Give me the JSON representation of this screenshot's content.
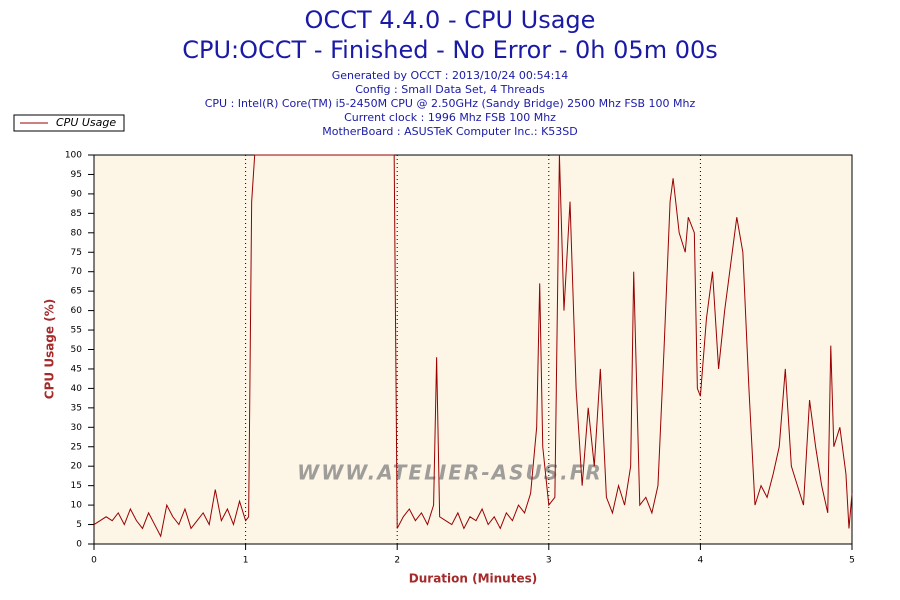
{
  "chart_data": {
    "type": "line",
    "title": "OCCT 4.4.0 - CPU Usage",
    "subtitle": "CPU:OCCT - Finished - No Error - 0h 05m 00s",
    "info_lines": [
      "Generated by OCCT : 2013/10/24 00:54:14",
      "Config : Small Data Set, 4 Threads",
      "CPU : Intel(R) Core(TM) i5-2450M CPU @ 2.50GHz (Sandy Bridge) 2500 Mhz FSB 100 Mhz",
      "Current clock : 1996 Mhz FSB 100 Mhz",
      "MotherBoard : ASUSTeK Computer Inc.: K53SD"
    ],
    "watermark": "WWW.ATELIER-ASUS.FR",
    "x_label": "Duration (Minutes)",
    "y_label": "CPU Usage (%)",
    "legend_position": "top-left",
    "grid": true,
    "xlim": [
      0,
      5
    ],
    "xticks": [
      0,
      1,
      2,
      3,
      4,
      5
    ],
    "ylim": [
      0,
      100
    ],
    "yticks": [
      0,
      5,
      10,
      15,
      20,
      25,
      30,
      35,
      40,
      45,
      50,
      55,
      60,
      65,
      70,
      75,
      80,
      85,
      90,
      95,
      100
    ],
    "x": [
      0,
      0.04,
      0.08,
      0.12,
      0.16,
      0.2,
      0.24,
      0.28,
      0.32,
      0.36,
      0.4,
      0.44,
      0.48,
      0.52,
      0.56,
      0.6,
      0.64,
      0.68,
      0.72,
      0.76,
      0.8,
      0.84,
      0.88,
      0.92,
      0.96,
      1.0,
      1.02,
      1.04,
      1.06,
      1.5,
      1.98,
      2.0,
      2.04,
      2.08,
      2.12,
      2.16,
      2.2,
      2.24,
      2.26,
      2.28,
      2.32,
      2.36,
      2.4,
      2.44,
      2.48,
      2.52,
      2.56,
      2.6,
      2.64,
      2.68,
      2.72,
      2.76,
      2.8,
      2.84,
      2.88,
      2.92,
      2.94,
      2.96,
      3.0,
      3.04,
      3.07,
      3.1,
      3.14,
      3.18,
      3.22,
      3.26,
      3.3,
      3.34,
      3.38,
      3.42,
      3.46,
      3.5,
      3.54,
      3.56,
      3.6,
      3.64,
      3.68,
      3.72,
      3.76,
      3.8,
      3.82,
      3.86,
      3.9,
      3.92,
      3.96,
      3.98,
      4.0,
      4.04,
      4.08,
      4.12,
      4.16,
      4.2,
      4.24,
      4.28,
      4.32,
      4.36,
      4.4,
      4.44,
      4.48,
      4.52,
      4.56,
      4.6,
      4.64,
      4.68,
      4.72,
      4.76,
      4.8,
      4.84,
      4.86,
      4.88,
      4.92,
      4.96,
      4.98,
      5.0
    ],
    "series": [
      {
        "name": "CPU Usage",
        "color": "#990000",
        "values": [
          5,
          6,
          7,
          6,
          8,
          5,
          9,
          6,
          4,
          8,
          5,
          2,
          10,
          7,
          5,
          9,
          4,
          6,
          8,
          5,
          14,
          6,
          9,
          5,
          11,
          6,
          7,
          88,
          100,
          100,
          100,
          4,
          7,
          9,
          6,
          8,
          5,
          10,
          48,
          7,
          6,
          5,
          8,
          4,
          7,
          6,
          9,
          5,
          7,
          4,
          8,
          6,
          10,
          8,
          13,
          30,
          67,
          25,
          10,
          12,
          100,
          60,
          88,
          40,
          15,
          35,
          20,
          45,
          12,
          8,
          15,
          10,
          20,
          70,
          10,
          12,
          8,
          15,
          50,
          88,
          94,
          80,
          75,
          84,
          80,
          40,
          38,
          58,
          70,
          45,
          60,
          72,
          84,
          75,
          40,
          10,
          15,
          12,
          18,
          25,
          45,
          20,
          15,
          10,
          37,
          25,
          15,
          8,
          51,
          25,
          30,
          18,
          4,
          13
        ]
      }
    ]
  }
}
